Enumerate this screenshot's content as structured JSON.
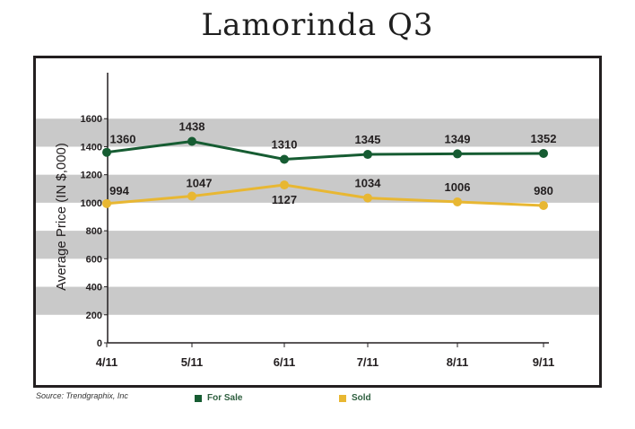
{
  "title": "Lamorinda Q3",
  "source": "Source: Trendgraphix, Inc",
  "colors": {
    "for_sale": "#165c32",
    "sold": "#e8b732",
    "band": "#c9c9c9",
    "axis": "#231f20"
  },
  "chart_data": {
    "type": "line",
    "title": "Lamorinda Q3",
    "xlabel": "",
    "ylabel": "Average Price (IN $,000)",
    "categories": [
      "4/11",
      "5/11",
      "6/11",
      "7/11",
      "8/11",
      "9/11"
    ],
    "ylim": [
      0,
      1800
    ],
    "yticks": [
      0,
      200,
      400,
      600,
      800,
      1000,
      1200,
      1400,
      1600
    ],
    "grid": "alternating horizontal bands",
    "legend_position": "bottom",
    "series": [
      {
        "name": "For Sale",
        "values": [
          1360,
          1438,
          1310,
          1345,
          1349,
          1352
        ],
        "labels": [
          "1360",
          "1438",
          "1310",
          "1345",
          "1349",
          "1352"
        ]
      },
      {
        "name": "Sold",
        "values": [
          994,
          1047,
          1127,
          1034,
          1006,
          980
        ],
        "labels": [
          "994",
          "1047",
          "1127",
          "1034",
          "1006",
          "980"
        ]
      }
    ]
  }
}
